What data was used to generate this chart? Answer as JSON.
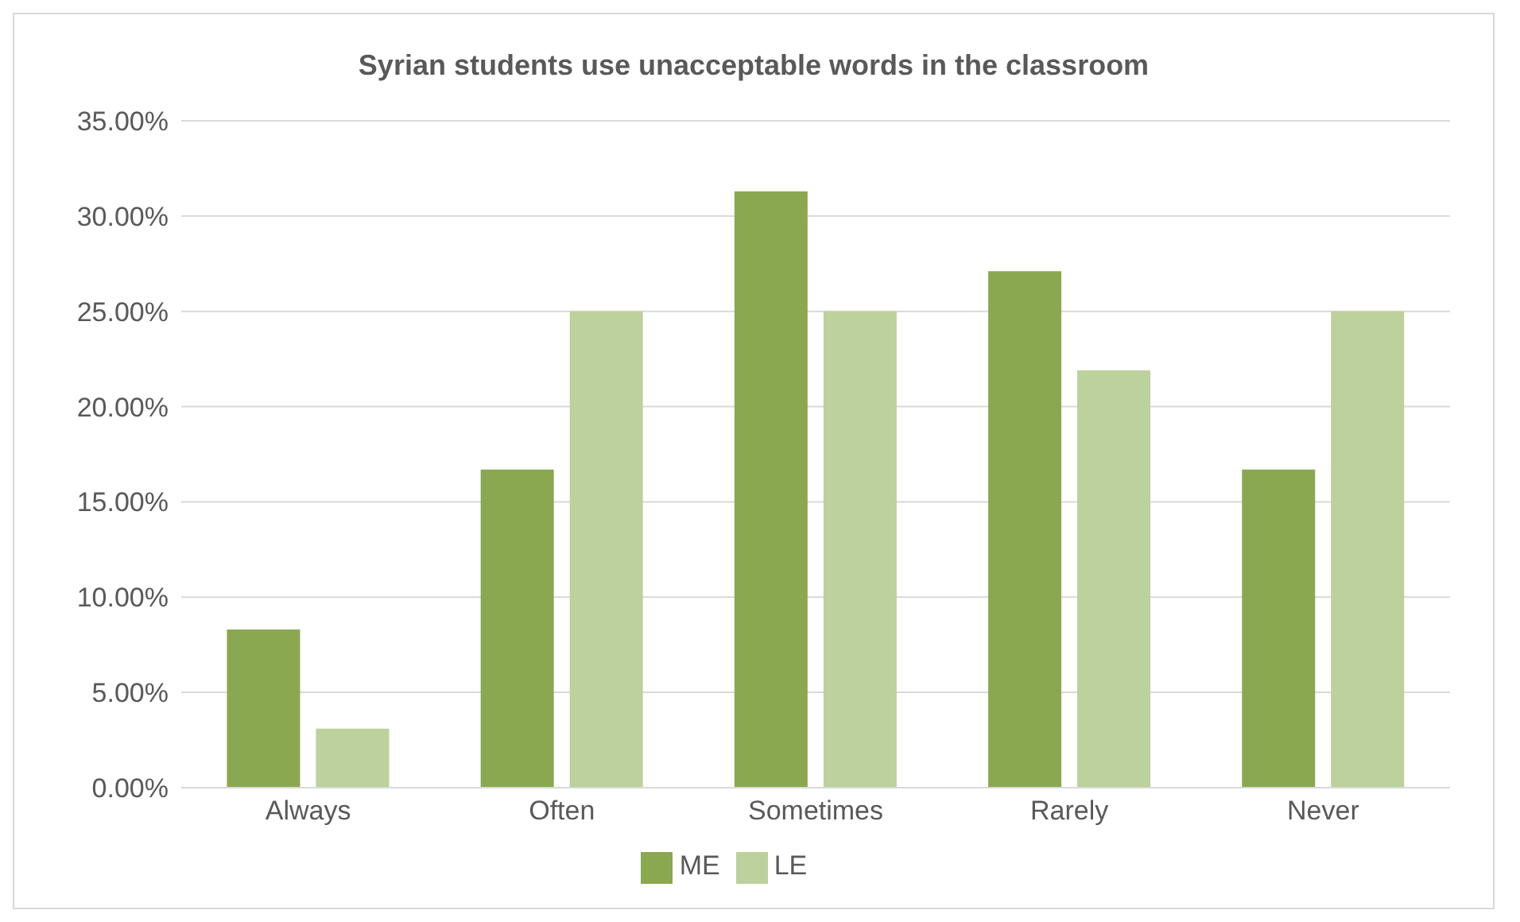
{
  "chart_data": {
    "type": "bar",
    "title": "Syrian students use unacceptable words in the classroom",
    "categories": [
      "Always",
      "Often",
      "Sometimes",
      "Rarely",
      "Never"
    ],
    "series": [
      {
        "name": "ME",
        "color": "#8aa84f",
        "values": [
          8.3,
          16.7,
          31.3,
          27.1,
          16.7
        ]
      },
      {
        "name": "LE",
        "color": "#bcd19b",
        "values": [
          3.1,
          25,
          25,
          21.9,
          25
        ]
      }
    ],
    "ylim": [
      0,
      35
    ],
    "yticks": [
      {
        "value": 0,
        "label": "0.00%"
      },
      {
        "value": 5,
        "label": "5.00%"
      },
      {
        "value": 10,
        "label": "10.00%"
      },
      {
        "value": 15,
        "label": "15.00%"
      },
      {
        "value": 20,
        "label": "20.00%"
      },
      {
        "value": 25,
        "label": "25.00%"
      },
      {
        "value": 30,
        "label": "30.00%"
      },
      {
        "value": 35,
        "label": "35.00%"
      }
    ],
    "grid": "y",
    "legend": "bottom"
  }
}
